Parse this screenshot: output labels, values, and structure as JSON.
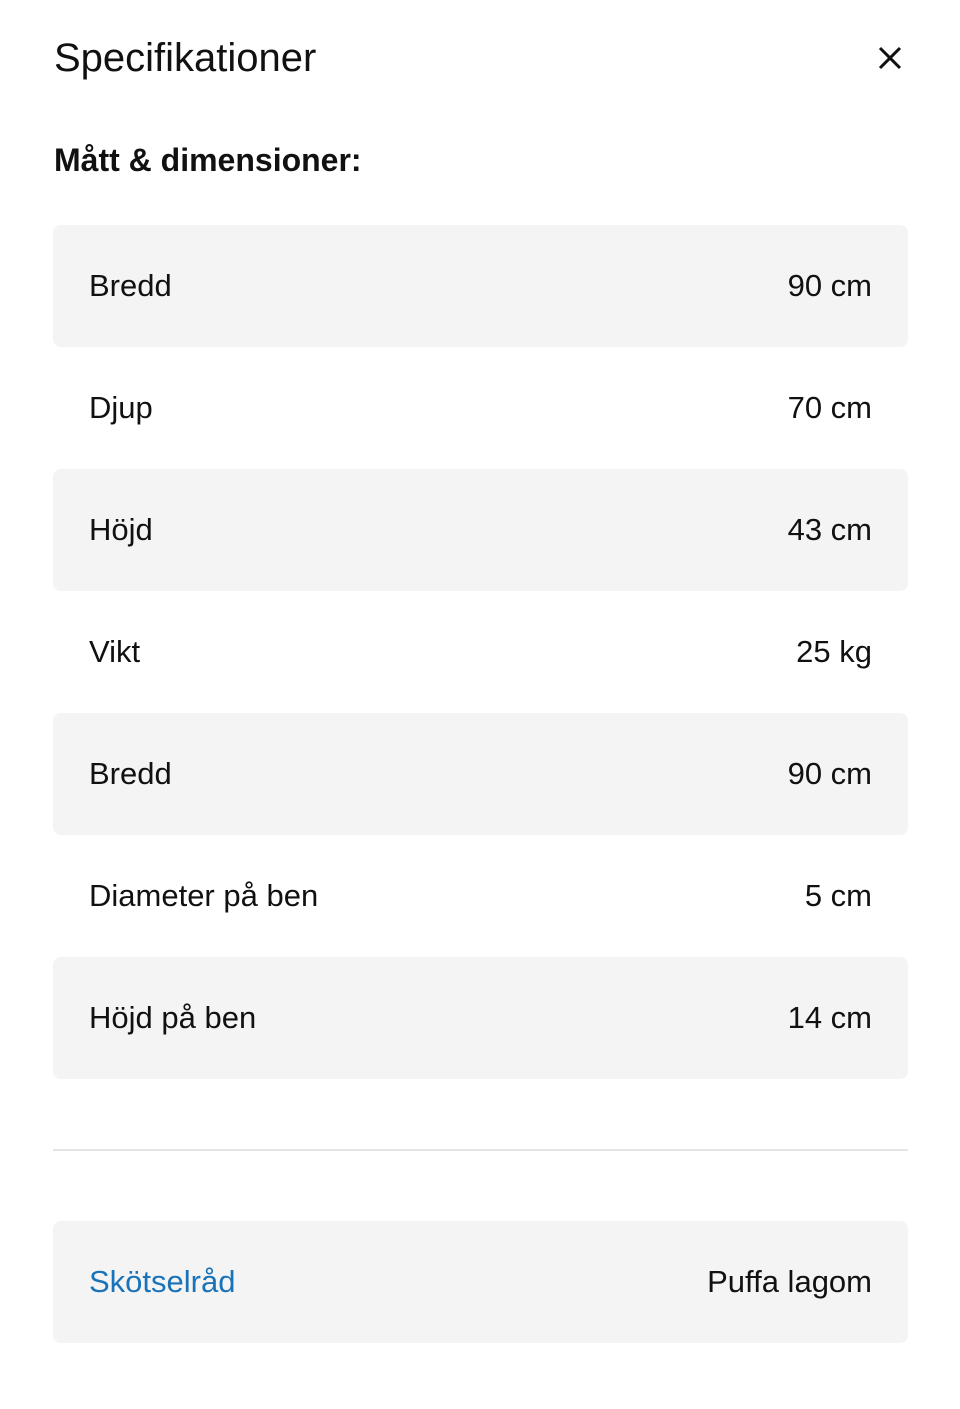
{
  "header": {
    "title": "Specifikationer",
    "close_icon": "close-icon"
  },
  "section": {
    "title": "Mått & dimensioner:"
  },
  "rows": [
    {
      "label": "Bredd",
      "value": "90 cm"
    },
    {
      "label": "Djup",
      "value": "70 cm"
    },
    {
      "label": "Höjd",
      "value": "43 cm"
    },
    {
      "label": "Vikt",
      "value": "25 kg"
    },
    {
      "label": "Bredd",
      "value": "90 cm"
    },
    {
      "label": "Diameter på ben",
      "value": "5 cm"
    },
    {
      "label": "Höjd på ben",
      "value": "14 cm"
    }
  ],
  "care": {
    "label": "Skötselråd",
    "value": "Puffa lagom",
    "link_color": "#1a73b8"
  }
}
